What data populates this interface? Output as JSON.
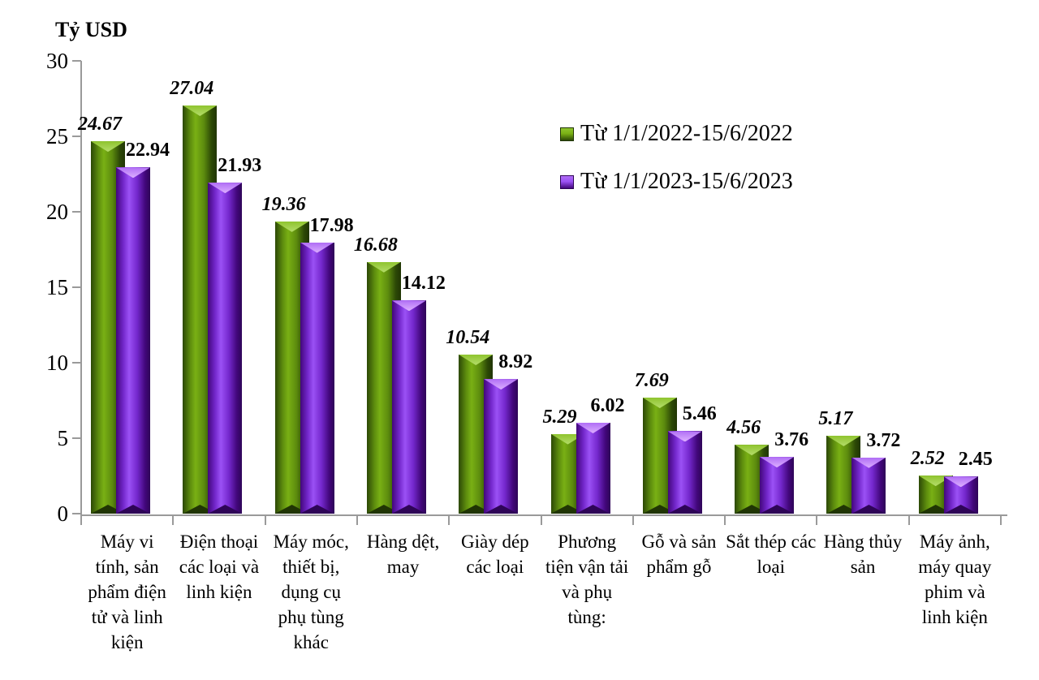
{
  "chart_data": {
    "type": "bar",
    "title": "Tỷ USD",
    "ylabel": "Tỷ USD",
    "xlabel": "",
    "ylim": [
      0,
      30
    ],
    "yticks": [
      0,
      5,
      10,
      15,
      20,
      25,
      30
    ],
    "grid": false,
    "legend_position": "top-right",
    "axis_color": "#9a9a9a",
    "categories": [
      "Máy vi tính, sản phẩm điện tử và linh kiện",
      "Điện thoại các loại và linh kiện",
      "Máy móc, thiết bị, dụng cụ phụ tùng khác",
      "Hàng dệt, may",
      "Giày dép các loại",
      "Phương tiện vận tải và phụ tùng:",
      "Gỗ và sản phẩm gỗ",
      "Sắt thép các loại",
      "Hàng thủy sản",
      "Máy ảnh, máy quay phim và linh kiện"
    ],
    "series": [
      {
        "name": "Từ 1/1/2022-15/6/2022",
        "values": [
          24.67,
          27.04,
          19.36,
          16.68,
          10.54,
          5.29,
          7.69,
          4.56,
          5.17,
          2.52
        ],
        "color": "#79b014",
        "color_mid": "#5d8c0e",
        "color_dark": "#2c4806",
        "color_light": "#8fc42e",
        "color_highlight": "#b4dc6a",
        "color_shadow": "#203504",
        "label_style": "italic"
      },
      {
        "name": "Từ 1/1/2023-15/6/2023",
        "values": [
          22.94,
          21.93,
          17.98,
          14.12,
          8.92,
          6.02,
          5.46,
          3.76,
          3.72,
          2.45
        ],
        "color": "#9b51f5",
        "color_mid": "#7428cd",
        "color_dark": "#42077b",
        "color_light": "#b06df5",
        "color_highlight": "#dcaeff",
        "color_shadow": "#2e0557",
        "label_style": "normal"
      }
    ]
  }
}
